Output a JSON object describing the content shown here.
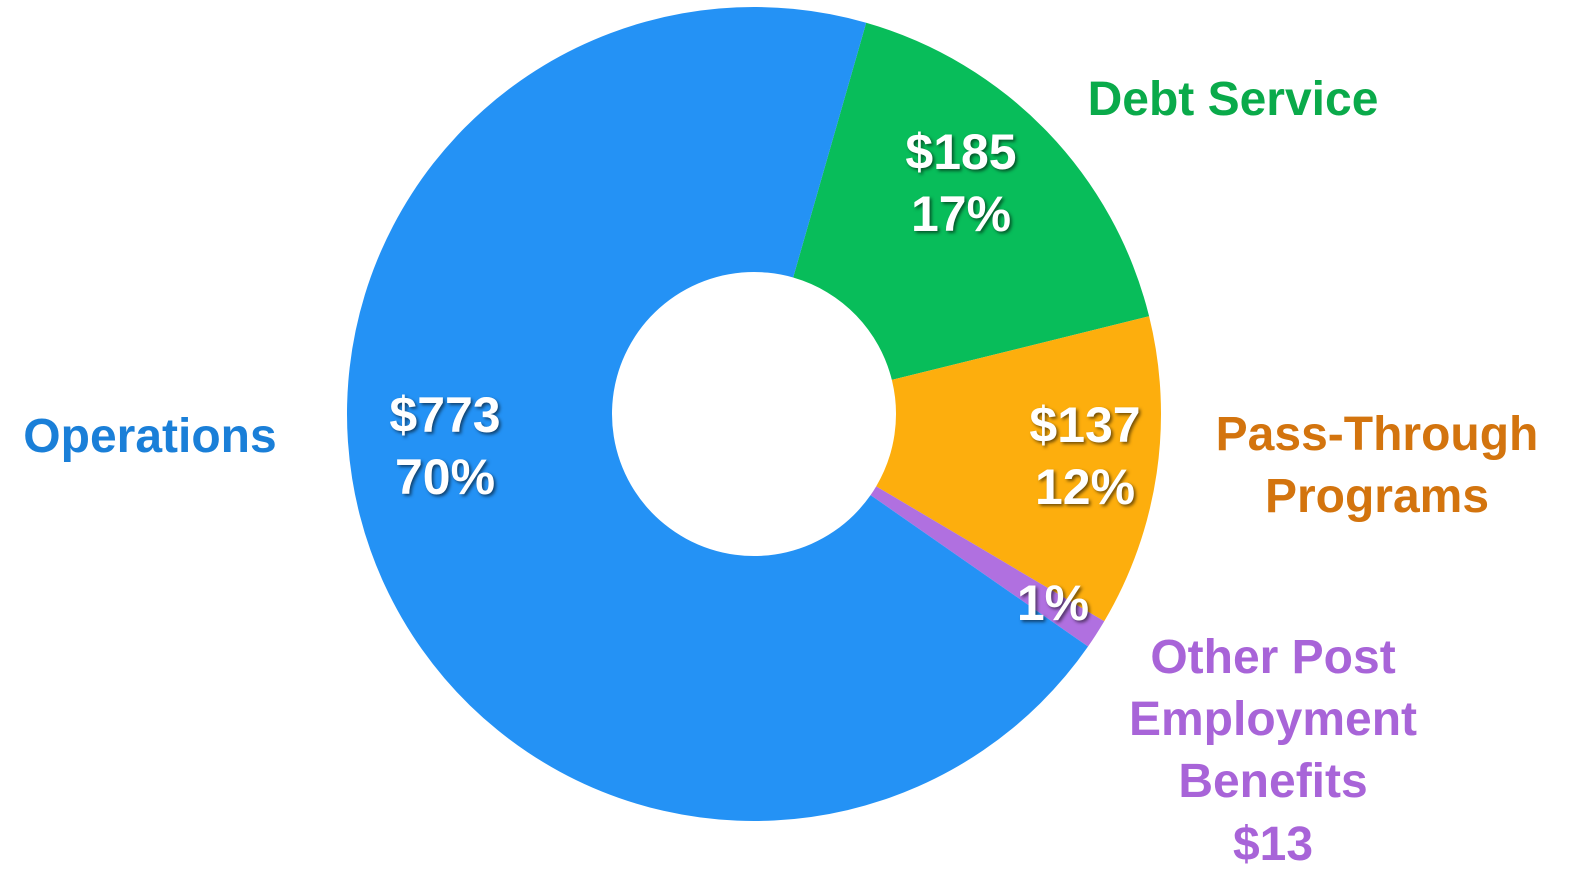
{
  "chart_data": {
    "type": "donut",
    "categories": [
      "Debt Service",
      "Pass-Through Programs",
      "Other Post Employment Benefits",
      "Operations"
    ],
    "values": [
      185,
      137,
      13,
      773
    ],
    "value_labels": [
      "$185",
      "$137",
      "$13",
      "$773"
    ],
    "percent_labels": [
      "17%",
      "12%",
      "1%",
      "70%"
    ],
    "colors": [
      "#08bd5a",
      "#fdae0d",
      "#b070e0",
      "#2492f5"
    ],
    "label_colors": [
      "#0aaa4a",
      "#d3740e",
      "#a864d8",
      "#1a7fd8"
    ]
  }
}
